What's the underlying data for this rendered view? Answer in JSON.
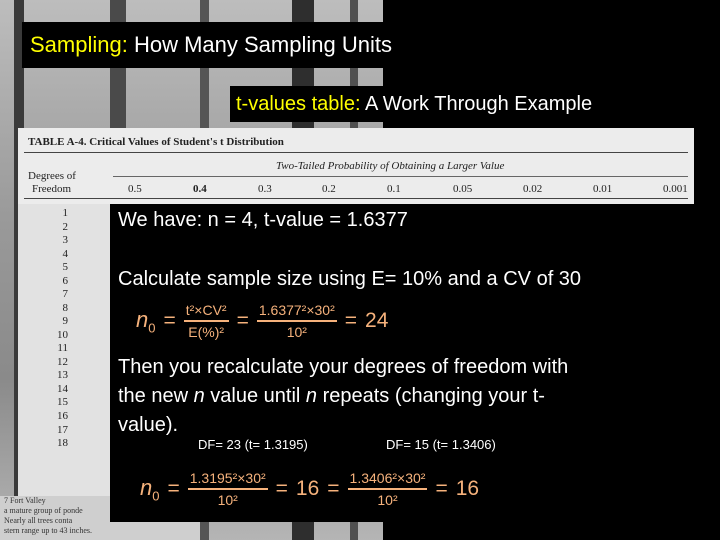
{
  "title": {
    "highlight": "Sampling:",
    "text": "How Many Sampling Units"
  },
  "subtitle": {
    "highlight": "t-values table:",
    "text": "A Work Through Example"
  },
  "table": {
    "caption": "TABLE A-4.  Critical Values of Student's t Distribution",
    "header_group": "Two-Tailed Probability of Obtaining a Larger Value",
    "row_header": [
      "Degrees of",
      "Freedom"
    ],
    "columns": [
      "0.5",
      "0.4",
      "0.3",
      "0.2",
      "0.1",
      "0.05",
      "0.02",
      "0.01",
      "0.001"
    ],
    "rows": [
      "1",
      "2",
      "3",
      "4",
      "5",
      "6",
      "7",
      "8",
      "9",
      "10",
      "11",
      "12",
      "13",
      "14",
      "15",
      "16",
      "17",
      "18"
    ]
  },
  "footnote": [
    "7   Fort Valley",
    "a mature group of ponde",
    "Nearly all trees conta",
    "stern range up to 43 inches."
  ],
  "body": {
    "given": "We have: n = 4, t-value = 1.6377",
    "instruction": "Calculate sample size using E= 10% and a CV of 30",
    "formula": {
      "lhs": "n",
      "lhs_sub": "0",
      "eq": "=",
      "num1": "t²×CV²",
      "den1": "E(%)²",
      "num2": "1.6377²×30²",
      "den2": "10²",
      "result": "24"
    },
    "note": [
      "Then you recalculate your degrees of freedom with",
      "the new ",
      "n",
      " value until ",
      "n",
      "  repeats (changing your t-",
      "value)."
    ],
    "iterations": [
      {
        "label": "DF= 23 (t= 1.3195)",
        "num": "1.3195²×30²",
        "den": "10²",
        "result": "16"
      },
      {
        "label": "DF= 15 (t= 1.3406)",
        "num": "1.3406²×30²",
        "den": "10²",
        "result": "16"
      }
    ]
  }
}
